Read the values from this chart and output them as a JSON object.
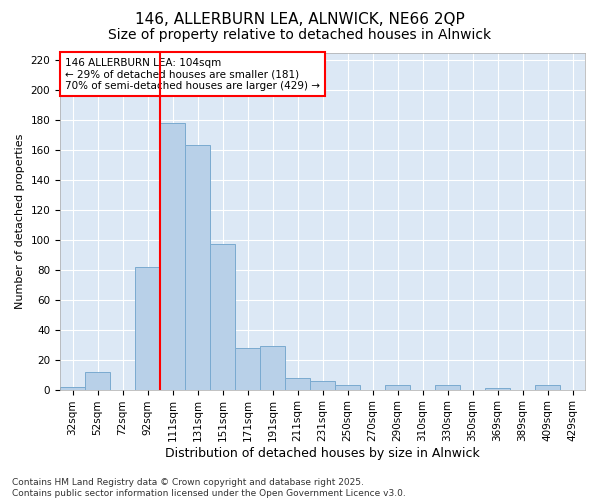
{
  "title_line1": "146, ALLERBURN LEA, ALNWICK, NE66 2QP",
  "title_line2": "Size of property relative to detached houses in Alnwick",
  "xlabel": "Distribution of detached houses by size in Alnwick",
  "ylabel": "Number of detached properties",
  "bins": [
    "32sqm",
    "52sqm",
    "72sqm",
    "92sqm",
    "111sqm",
    "131sqm",
    "151sqm",
    "171sqm",
    "191sqm",
    "211sqm",
    "231sqm",
    "250sqm",
    "270sqm",
    "290sqm",
    "310sqm",
    "330sqm",
    "350sqm",
    "369sqm",
    "389sqm",
    "409sqm",
    "429sqm"
  ],
  "values": [
    2,
    12,
    0,
    82,
    178,
    163,
    97,
    28,
    29,
    8,
    6,
    3,
    0,
    3,
    0,
    3,
    0,
    1,
    0,
    3,
    0
  ],
  "bar_color": "#b8d0e8",
  "bar_edge_color": "#7aaad0",
  "vline_x": 3.5,
  "vline_color": "red",
  "ylim": [
    0,
    225
  ],
  "yticks": [
    0,
    20,
    40,
    60,
    80,
    100,
    120,
    140,
    160,
    180,
    200,
    220
  ],
  "annotation_text": "146 ALLERBURN LEA: 104sqm\n← 29% of detached houses are smaller (181)\n70% of semi-detached houses are larger (429) →",
  "annotation_box_color": "white",
  "annotation_box_edge_color": "red",
  "footer_line1": "Contains HM Land Registry data © Crown copyright and database right 2025.",
  "footer_line2": "Contains public sector information licensed under the Open Government Licence v3.0.",
  "fig_bg_color": "#ffffff",
  "plot_bg_color": "#dce8f5",
  "grid_color": "white",
  "title1_fontsize": 11,
  "title2_fontsize": 10,
  "xlabel_fontsize": 9,
  "ylabel_fontsize": 8,
  "tick_fontsize": 7.5,
  "annot_fontsize": 7.5,
  "footer_fontsize": 6.5
}
